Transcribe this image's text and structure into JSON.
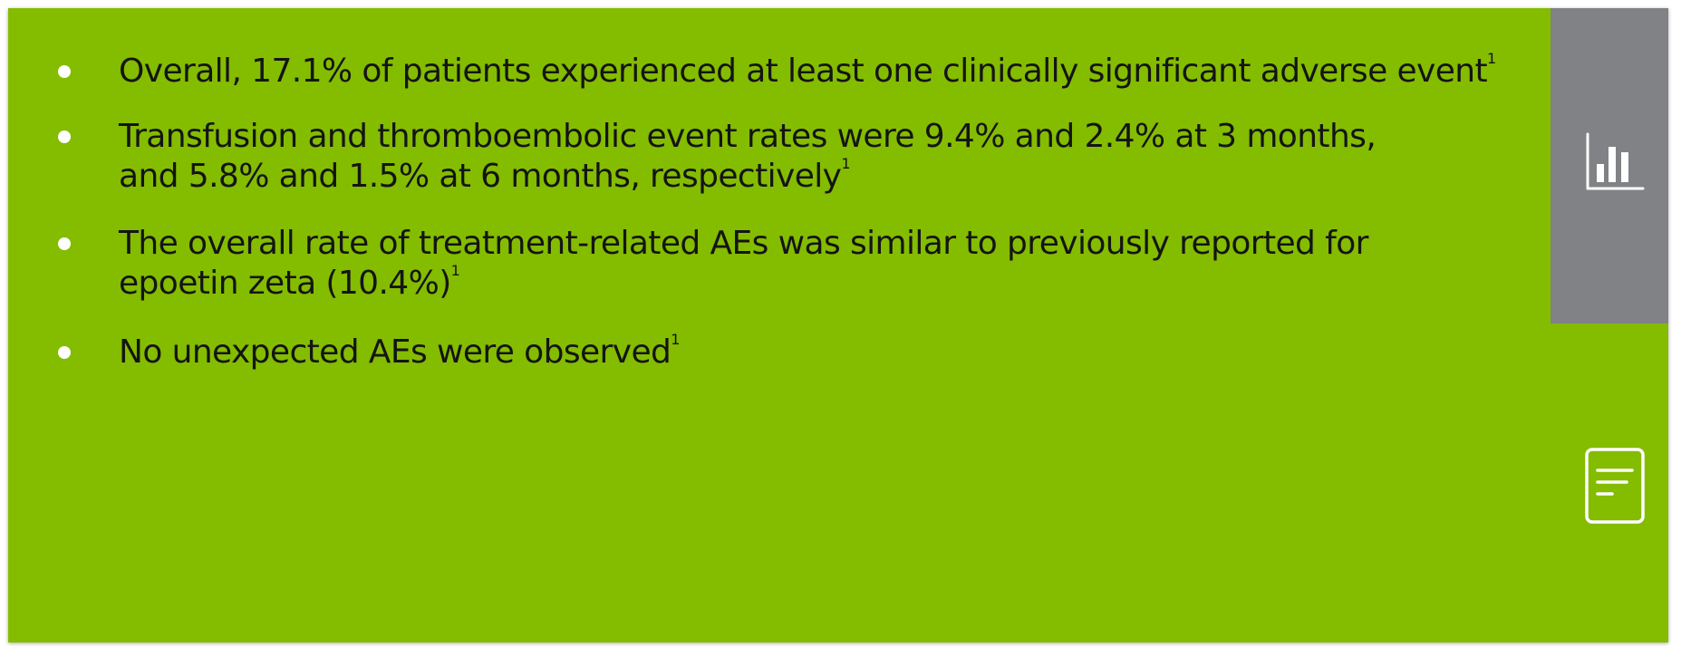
{
  "bullets": [
    {
      "text": "Overall, 17.1% of patients experienced at least one clinically significant adverse event",
      "sup": "1"
    },
    {
      "lines": [
        "Transfusion and thromboembolic event rates were 9.4% and 2.4% at 3 months,",
        "and 5.8% and 1.5% at 6 months, respectively"
      ],
      "sup": "1"
    },
    {
      "lines": [
        "The overall rate of treatment-related AEs was similar to previously reported for",
        "epoetin zeta (10.4%)"
      ],
      "sup": "1"
    },
    {
      "text": "No unexpected AEs were observed",
      "sup": "1"
    }
  ],
  "icons": {
    "chart": "bar-chart-icon",
    "document": "document-icon"
  },
  "colors": {
    "panel": "#84bc00",
    "side_tab": "#818285",
    "bullet_dot": "#ffffff",
    "icon_stroke": "#ffffff",
    "text": "#141414"
  }
}
